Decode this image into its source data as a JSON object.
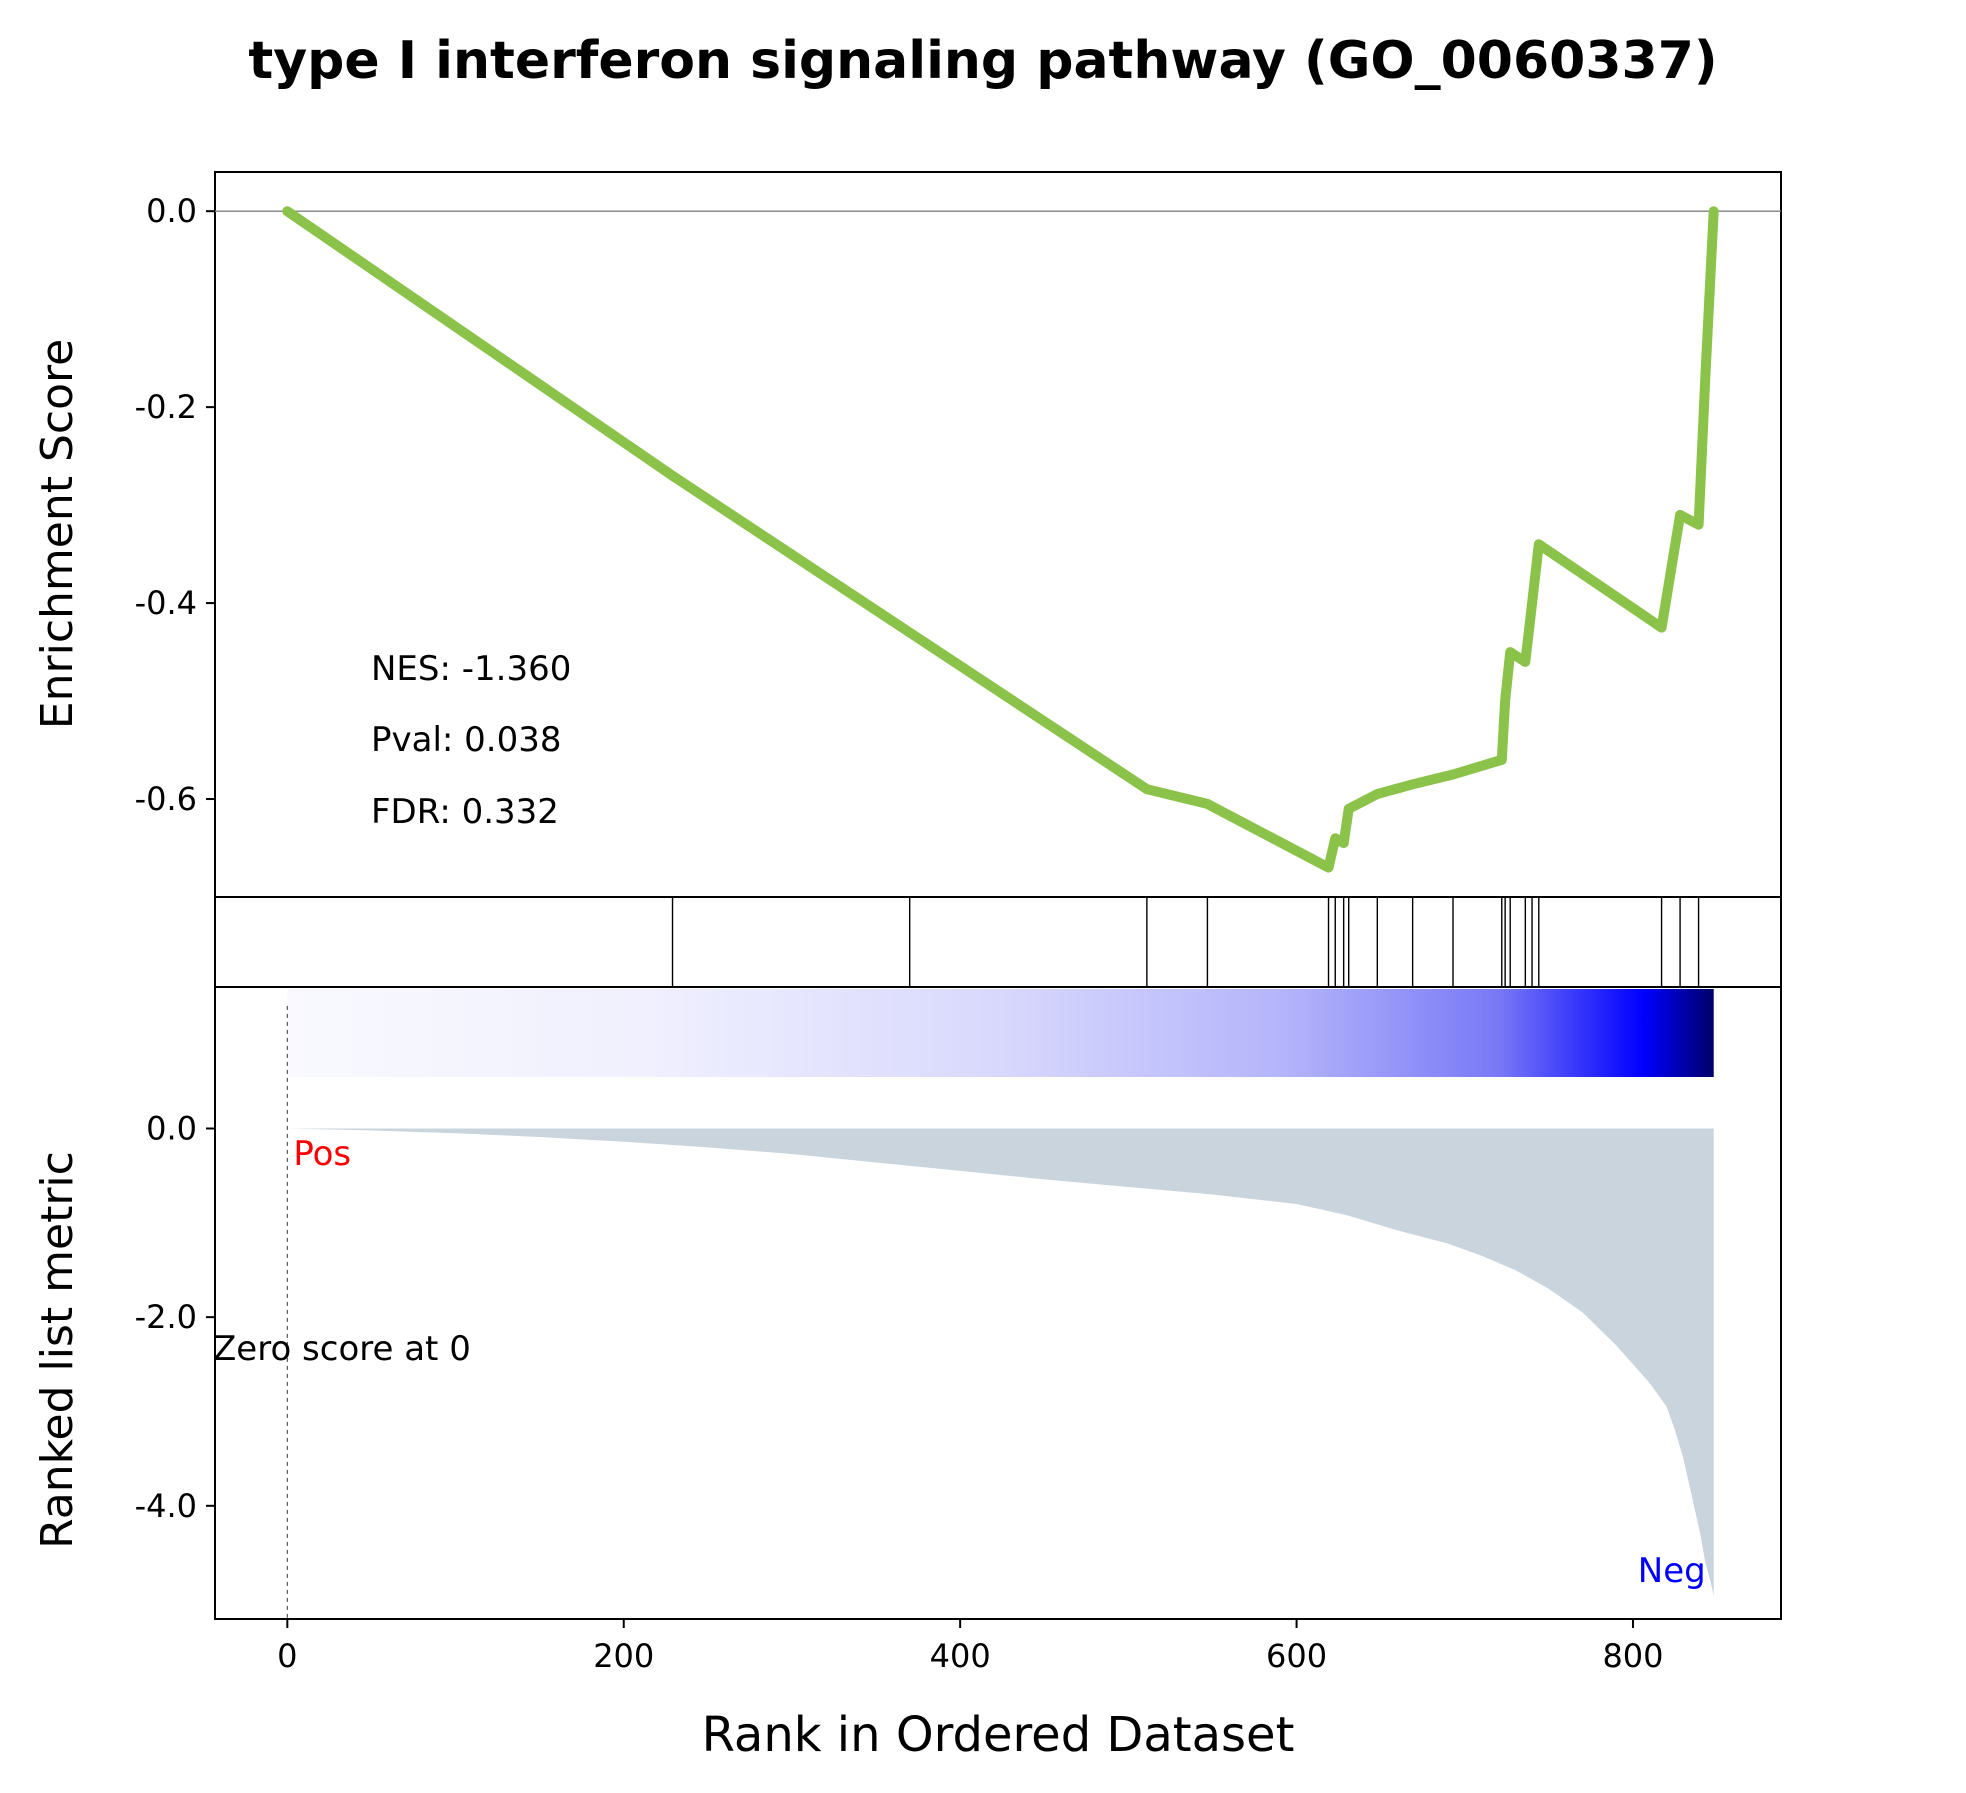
{
  "chart_data": {
    "type": "line",
    "title": "type I interferon signaling pathway (GO_0060337)",
    "xlabel": "Rank in Ordered Dataset",
    "xlim": [
      -43,
      888
    ],
    "x_ticks": [
      0,
      200,
      400,
      600,
      800
    ],
    "line_color": "#8bc34a",
    "es_panel": {
      "ylabel": "Enrichment Score",
      "ylim": [
        -0.7,
        0.04
      ],
      "y_ticks": [
        0.0,
        -0.2,
        -0.4,
        -0.6
      ],
      "y_tick_labels": [
        "0.0",
        "-0.2",
        "-0.4",
        "-0.6"
      ],
      "zero_line": true,
      "series": [
        {
          "x": [
            0,
            229,
            229,
            370,
            370,
            511,
            511,
            547,
            547,
            619,
            619,
            623,
            623,
            628,
            628,
            631,
            631,
            648,
            648,
            669,
            669,
            693,
            693,
            722,
            722,
            724,
            724,
            727,
            727,
            736,
            736,
            740,
            740,
            744,
            744,
            817,
            817,
            828,
            828,
            839,
            839,
            843,
            843,
            848
          ],
          "y": [
            0.0,
            -0.27,
            -0.27,
            -0.43,
            -0.43,
            -0.59,
            -0.59,
            -0.605,
            -0.605,
            -0.67,
            -0.67,
            -0.64,
            -0.64,
            -0.645,
            -0.645,
            -0.61,
            -0.61,
            -0.595,
            -0.595,
            -0.585,
            -0.585,
            -0.575,
            -0.575,
            -0.56,
            -0.56,
            -0.5,
            -0.5,
            -0.45,
            -0.45,
            -0.46,
            -0.46,
            -0.4,
            -0.4,
            -0.34,
            -0.34,
            -0.425,
            -0.425,
            -0.31,
            -0.31,
            -0.32,
            -0.32,
            -0.17,
            -0.17,
            0.0
          ]
        }
      ]
    },
    "annotations": {
      "nes": "NES: -1.360",
      "pval": "Pval: 0.038",
      "fdr": "FDR: 0.332"
    },
    "hits": {
      "x": [
        229,
        370,
        511,
        547,
        619,
        623,
        628,
        631,
        648,
        669,
        693,
        722,
        724,
        727,
        736,
        740,
        744,
        817,
        828,
        839
      ]
    },
    "rank_panel": {
      "ylabel": "Ranked list metric",
      "ylim": [
        -5.2,
        1.5
      ],
      "y_ticks": [
        0.0,
        -2.0,
        -4.0
      ],
      "y_tick_labels": [
        "0.0",
        "-2.0",
        "-4.0"
      ],
      "fill_color": "#c9d4dd",
      "heatmap_x_range": [
        0,
        848
      ],
      "pos_label": "Pos",
      "neg_label": "Neg",
      "pos_color": "#ff0000",
      "neg_color": "#0000ff",
      "zero_score_label": "Zero score at 0",
      "zero_score_x": 0,
      "metric": {
        "x": [
          0,
          50,
          100,
          150,
          200,
          250,
          300,
          350,
          400,
          450,
          500,
          550,
          600,
          630,
          660,
          690,
          710,
          730,
          750,
          770,
          790,
          800,
          810,
          820,
          825,
          830,
          835,
          840,
          843,
          846,
          848
        ],
        "y": [
          0.0,
          -0.02,
          -0.05,
          -0.09,
          -0.14,
          -0.2,
          -0.27,
          -0.36,
          -0.45,
          -0.54,
          -0.62,
          -0.7,
          -0.8,
          -0.92,
          -1.08,
          -1.22,
          -1.35,
          -1.5,
          -1.7,
          -1.95,
          -2.3,
          -2.5,
          -2.7,
          -2.95,
          -3.2,
          -3.5,
          -3.9,
          -4.3,
          -4.6,
          -4.8,
          -4.95
        ]
      }
    }
  }
}
